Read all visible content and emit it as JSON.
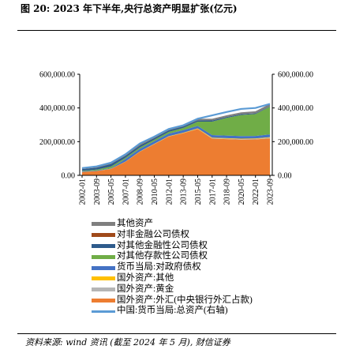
{
  "title": "图 20: 2023 年下半年,央行总资产明显扩张(亿元)",
  "source": "资料来源: wind 资讯 (截至 2024 年 5 月), 财信证券",
  "chart_data": {
    "type": "area",
    "x_ticks": [
      "2002-01",
      "2003-09",
      "2005-05",
      "2007-01",
      "2008-09",
      "2010-05",
      "2012-01",
      "2013-09",
      "2015-05",
      "2017-01",
      "2018-09",
      "2020-05",
      "2022-01",
      "2023-09"
    ],
    "y_left_ticks": [
      "0.00",
      "200,000.00",
      "400,000.00",
      "600,000.00"
    ],
    "y_right_ticks": [
      "0.00",
      "200,000.00",
      "400,000.00",
      "600,000.00"
    ],
    "ylim": [
      0,
      600000
    ],
    "grid": false,
    "legend_position": "bottom",
    "stack_order": [
      "外汇",
      "黄金",
      "其他",
      "对政府债权",
      "对其他存款性公司债权",
      "对其他金融性公司债权",
      "对非金融公司债权",
      "其他资产"
    ],
    "series": [
      {
        "key": "其他资产",
        "name": "其他资产",
        "color": "#7f7f7f",
        "values": [
          6000,
          7000,
          8000,
          9000,
          10000,
          8000,
          7000,
          7000,
          9000,
          10000,
          10000,
          11000,
          12000,
          13000
        ]
      },
      {
        "key": "对非金融公司债权",
        "name": "对非金融公司债权",
        "color": "#a04a1a",
        "values": [
          200,
          200,
          200,
          200,
          200,
          200,
          100,
          100,
          100,
          0,
          0,
          0,
          0,
          0
        ]
      },
      {
        "key": "对其他金融性公司债权",
        "name": "对其他金融性公司债权",
        "color": "#2e5b8c",
        "values": [
          10000,
          12000,
          15000,
          12000,
          12000,
          10000,
          10000,
          9000,
          8000,
          7000,
          5000,
          5000,
          4000,
          3000
        ]
      },
      {
        "key": "对其他存款性公司债权",
        "name": "对其他存款性公司债权",
        "color": "#70ad47",
        "values": [
          3000,
          5000,
          10000,
          7000,
          8000,
          9000,
          10000,
          13000,
          25000,
          80000,
          105000,
          125000,
          130000,
          165000
        ]
      },
      {
        "key": "对政府债权",
        "name": "货币当局:对政府债权",
        "color": "#4472c4",
        "values": [
          3000,
          3000,
          3000,
          16000,
          16000,
          15000,
          15000,
          15000,
          15000,
          15000,
          15000,
          15000,
          15000,
          16000
        ]
      },
      {
        "key": "其他",
        "name": "国外资产:其他",
        "color": "#ffc000",
        "values": [
          500,
          500,
          800,
          1000,
          1500,
          2000,
          2000,
          2500,
          3000,
          3000,
          3000,
          3000,
          3000,
          3000
        ]
      },
      {
        "key": "黄金",
        "name": "国外资产:黄金",
        "color": "#b5b5b5",
        "values": [
          300,
          300,
          300,
          300,
          300,
          700,
          700,
          700,
          700,
          3000,
          3000,
          3000,
          3000,
          4000
        ]
      },
      {
        "key": "外汇",
        "name": "国外资产:外汇(中央银行外汇占款)",
        "color": "#ed7d31",
        "values": [
          20000,
          25000,
          38000,
          80000,
          140000,
          185000,
          230000,
          250000,
          275000,
          218000,
          215000,
          212000,
          213000,
          220000
        ]
      },
      {
        "key": "总资产",
        "name": "中国:货币当局:总资产(右轴)",
        "color": "#5b9bd5",
        "type": "line",
        "values": [
          43000,
          53000,
          75000,
          125000,
          189000,
          230000,
          275000,
          297000,
          336000,
          356000,
          376000,
          394000,
          400000,
          424000
        ]
      }
    ]
  }
}
